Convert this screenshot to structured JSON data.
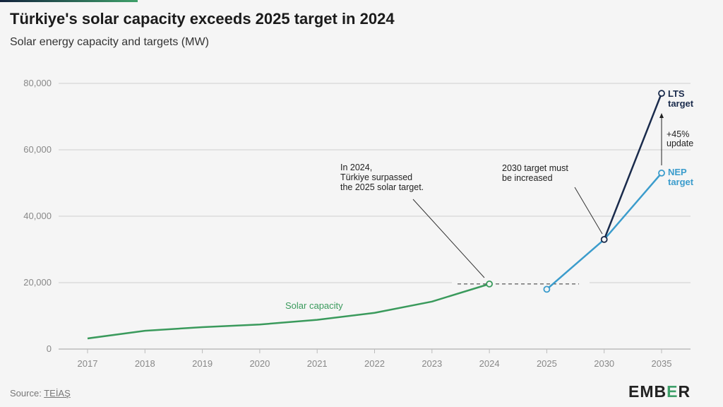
{
  "header": {
    "title": "Türkiye's solar capacity exceeds 2025 target in 2024",
    "subtitle": "Solar energy capacity and targets (MW)"
  },
  "footer": {
    "source_label": "Source:",
    "source_link": "TEİAŞ",
    "logo": "EMBER"
  },
  "colors": {
    "solar": "#3a9a5c",
    "nep": "#3b9ccc",
    "lts": "#1a2b4c",
    "grid": "#cfcfcf",
    "text": "#777777"
  },
  "chart_data": {
    "type": "line",
    "title": "Türkiye's solar capacity exceeds 2025 target in 2024",
    "subtitle": "Solar energy capacity and targets (MW)",
    "xlabel": "",
    "ylabel": "",
    "categories": [
      "2017",
      "2018",
      "2019",
      "2020",
      "2021",
      "2022",
      "2023",
      "2024",
      "2025",
      "2030",
      "2035"
    ],
    "ylim": [
      0,
      80000
    ],
    "yticks": [
      0,
      20000,
      40000,
      60000,
      80000
    ],
    "ytick_labels": [
      "0",
      "20,000",
      "40,000",
      "60,000",
      "80,000"
    ],
    "grid": true,
    "series": [
      {
        "name": "Solar capacity",
        "color": "#3a9a5c",
        "x": [
          "2017",
          "2018",
          "2019",
          "2020",
          "2021",
          "2022",
          "2023",
          "2024"
        ],
        "values": [
          3200,
          5500,
          6600,
          7400,
          8800,
          10900,
          14300,
          19600
        ]
      },
      {
        "name": "NEP target",
        "color": "#3b9ccc",
        "x": [
          "2025",
          "2030",
          "2035"
        ],
        "values": [
          18000,
          33000,
          53000
        ]
      },
      {
        "name": "LTS target",
        "color": "#1a2b4c",
        "x": [
          "2030",
          "2035"
        ],
        "values": [
          33000,
          77000
        ]
      }
    ],
    "series_labels": {
      "solar": "Solar capacity",
      "lts": [
        "LTS",
        "target"
      ],
      "nep": [
        "NEP",
        "target"
      ]
    },
    "annotations": {
      "surpassed": [
        "In 2024,",
        "Türkiye surpassed",
        "the 2025 solar target."
      ],
      "increase": [
        "2030 target must",
        "be increased"
      ],
      "update": [
        "+45%",
        "update"
      ]
    },
    "reference_line": {
      "value": 19600,
      "style": "dashed"
    }
  }
}
